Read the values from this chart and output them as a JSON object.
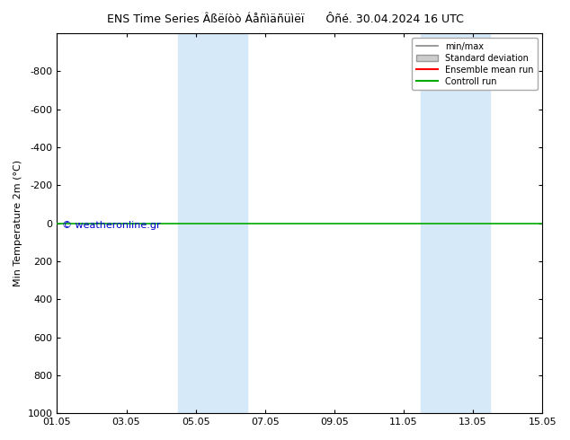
{
  "title_left": "ENS Time Series Âßëíòò Áåñìäñüìëï",
  "title_right": "Ôñé. 30.04.2024 16 UTC",
  "ylabel": "Min Temperature 2m (°C)",
  "ylim_top": 1000,
  "ylim_bottom": -1000,
  "yticks": [
    -800,
    -600,
    -400,
    -200,
    0,
    200,
    400,
    600,
    800,
    1000
  ],
  "xtick_labels": [
    "01.05",
    "03.05",
    "05.05",
    "07.05",
    "09.05",
    "11.05",
    "13.05",
    "15.05"
  ],
  "xtick_positions": [
    0,
    2,
    4,
    6,
    8,
    10,
    12,
    14
  ],
  "xmin": 0,
  "xmax": 14,
  "shaded_bands": [
    {
      "xstart": 3.5,
      "xend": 5.5
    },
    {
      "xstart": 10.5,
      "xend": 12.5
    }
  ],
  "shaded_color": "#d6e9f8",
  "green_line_y": 0,
  "green_line_color": "#00aa00",
  "red_line_color": "#ff0000",
  "gray_line_color": "#888888",
  "legend_labels": [
    "min/max",
    "Standard deviation",
    "Ensemble mean run",
    "Controll run"
  ],
  "legend_colors": [
    "#888888",
    "#cccccc",
    "#ff0000",
    "#00aa00"
  ],
  "watermark": "© weatheronline.gr",
  "watermark_color": "#0000cc",
  "background_color": "#ffffff",
  "plot_bg_color": "#ffffff"
}
